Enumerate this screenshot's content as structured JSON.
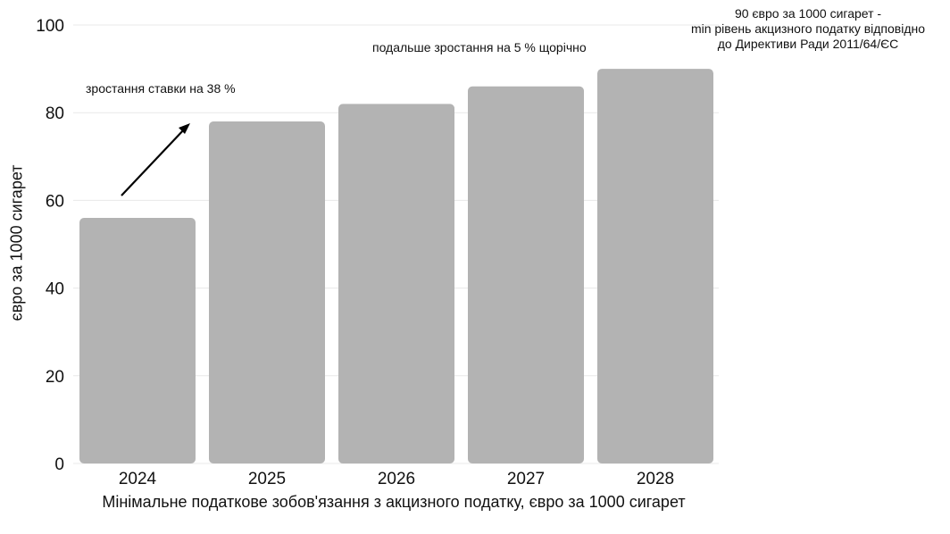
{
  "chart_data": {
    "type": "bar",
    "categories": [
      "2024",
      "2025",
      "2026",
      "2027",
      "2028"
    ],
    "values": [
      56,
      78,
      82,
      86,
      90
    ],
    "ylim": [
      0,
      100
    ],
    "yticks": [
      0,
      20,
      40,
      60,
      80,
      100
    ],
    "xlabel": "Мінімальне податкове зобов'язання з акцизного податку, євро за 1000 сигарет",
    "ylabel": "євро за 1000 сигарет",
    "bar_color": "#b3b3b3",
    "grid": true,
    "annotations": {
      "growth_38": "зростання ставки на 38 %",
      "growth_5": "подальше зростання на 5 % щорічно",
      "target_line1": "90 євро за 1000 сигарет -",
      "target_line2": "min рівень акцизного податку відповідно",
      "target_line3": "до Директиви Ради 2011/64/ЄС"
    }
  }
}
